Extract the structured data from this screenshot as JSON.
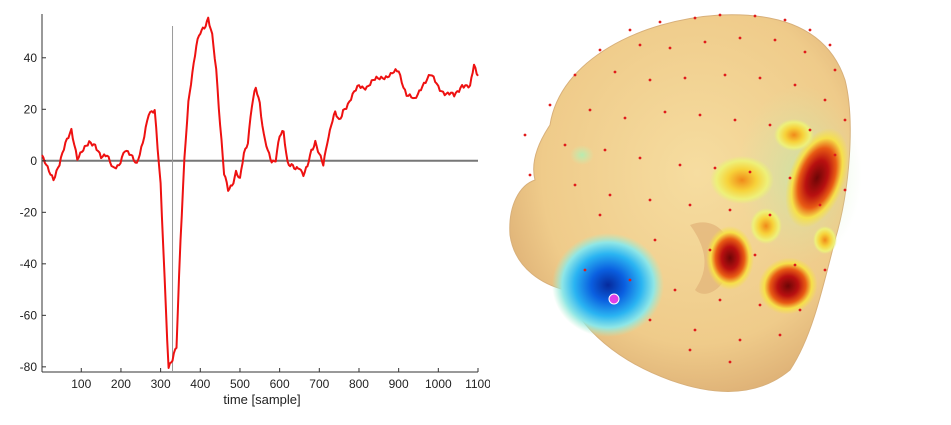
{
  "chart_data": [
    {
      "type": "line",
      "xlabel": "time [sample]",
      "ylabel": "",
      "xlim": [
        1,
        1100
      ],
      "ylim": [
        -82,
        57
      ],
      "xticks": [
        100,
        200,
        300,
        400,
        500,
        600,
        700,
        800,
        900,
        1000,
        1100
      ],
      "yticks": [
        -80,
        -60,
        -40,
        -20,
        0,
        20,
        40
      ],
      "zero_line": 0,
      "cursor_x": 330,
      "series_color": "#ee1111",
      "grid": false,
      "x": [
        1,
        15,
        30,
        45,
        60,
        75,
        90,
        105,
        120,
        135,
        150,
        165,
        180,
        195,
        210,
        225,
        240,
        255,
        270,
        285,
        300,
        310,
        320,
        330,
        340,
        350,
        360,
        370,
        380,
        390,
        400,
        410,
        420,
        430,
        440,
        450,
        460,
        470,
        480,
        490,
        500,
        510,
        520,
        530,
        540,
        550,
        560,
        570,
        580,
        590,
        600,
        610,
        620,
        630,
        640,
        650,
        660,
        670,
        680,
        690,
        700,
        710,
        720,
        730,
        740,
        750,
        760,
        780,
        800,
        820,
        840,
        860,
        880,
        900,
        920,
        940,
        960,
        980,
        1000,
        1020,
        1040,
        1060,
        1080,
        1090,
        1100
      ],
      "y": [
        1,
        -3,
        -8,
        -2,
        6,
        11,
        0,
        4,
        7,
        6,
        2,
        3,
        -2,
        -1,
        5,
        3,
        -1,
        7,
        18,
        19,
        -10,
        -45,
        -80,
        -78,
        -72,
        -30,
        0,
        22,
        35,
        45,
        49,
        52,
        56,
        48,
        35,
        15,
        -5,
        -12,
        -9,
        -4,
        -8,
        3,
        8,
        21,
        28,
        23,
        10,
        3,
        0,
        1,
        9,
        11,
        0,
        -2,
        -4,
        -2,
        -5,
        -3,
        4,
        8,
        2,
        -2,
        8,
        14,
        18,
        16,
        20,
        24,
        29,
        29,
        31,
        33,
        33,
        35,
        26,
        23,
        30,
        33,
        29,
        26,
        25,
        30,
        28,
        38,
        33
      ]
    },
    {
      "type": "heatmap",
      "title": "",
      "description_colors": {
        "skin": "#f1d191",
        "positive_peak": "#8b0a0a",
        "positive_mid": "#f2d35a",
        "negative_peak": "#0a2fb0",
        "negative_mid": "#3fb8f0",
        "sensor_dots": "#e01c1c",
        "dipole": "#e040e8"
      }
    }
  ]
}
